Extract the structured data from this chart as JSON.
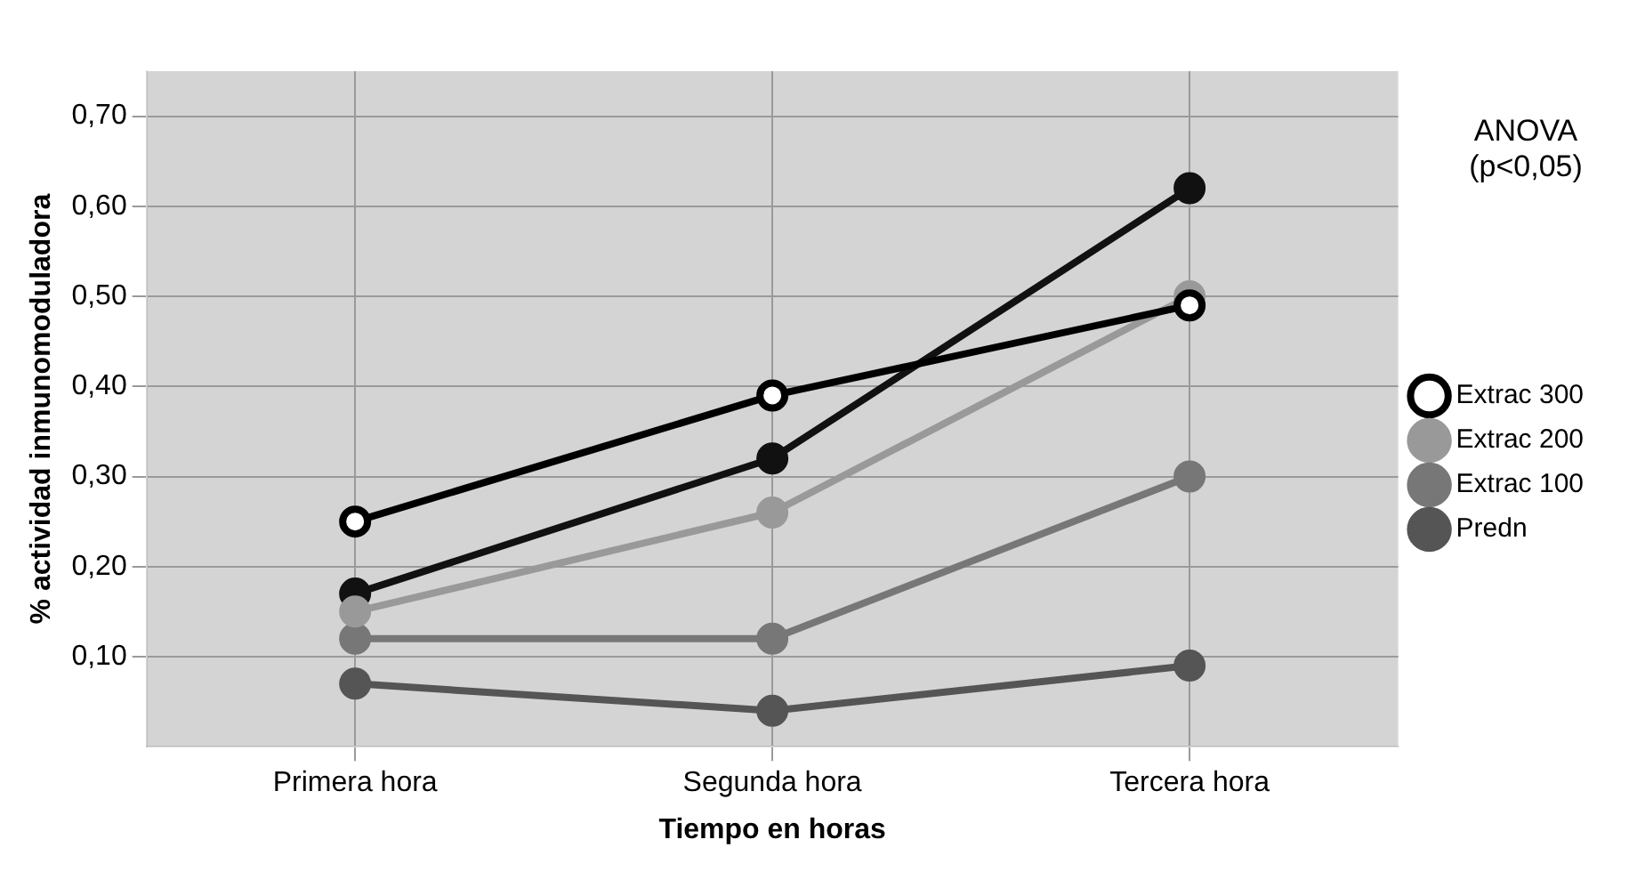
{
  "chart_data": {
    "type": "line",
    "xlabel": "Tiempo en horas",
    "ylabel": "% actividad inmunomoduladora",
    "categories": [
      "Primera hora",
      "Segunda hora",
      "Tercera hora"
    ],
    "series": [
      {
        "color": "#111111",
        "values": [
          0.17,
          0.32,
          0.62
        ]
      },
      {
        "name": "Predn",
        "color": "#555555",
        "values": [
          0.07,
          0.04,
          0.09
        ]
      },
      {
        "name": "Extrac 100",
        "color": "#777777",
        "values": [
          0.12,
          0.12,
          0.3
        ]
      },
      {
        "name": "Extrac 200",
        "color": "#999999",
        "values": [
          0.15,
          0.26,
          0.5
        ]
      },
      {
        "name": "Extrac 300",
        "color": "#ffffff",
        "values": [
          0.25,
          0.39,
          0.49
        ]
      }
    ],
    "ylim": [
      0,
      0.75
    ],
    "yticks": [
      {
        "value": 0.1,
        "label": "0,10"
      },
      {
        "value": 0.2,
        "label": "0,20"
      },
      {
        "value": 0.3,
        "label": "0,30"
      },
      {
        "value": 0.4,
        "label": "0,40"
      },
      {
        "value": 0.5,
        "label": "0,50"
      },
      {
        "value": 0.6,
        "label": "0,60"
      },
      {
        "value": 0.7,
        "label": "0,70"
      }
    ],
    "grid": true,
    "legend": "right",
    "marker": "circle",
    "line_style": "solid",
    "annotations": [
      "ANOVA (p<0,05)"
    ]
  }
}
